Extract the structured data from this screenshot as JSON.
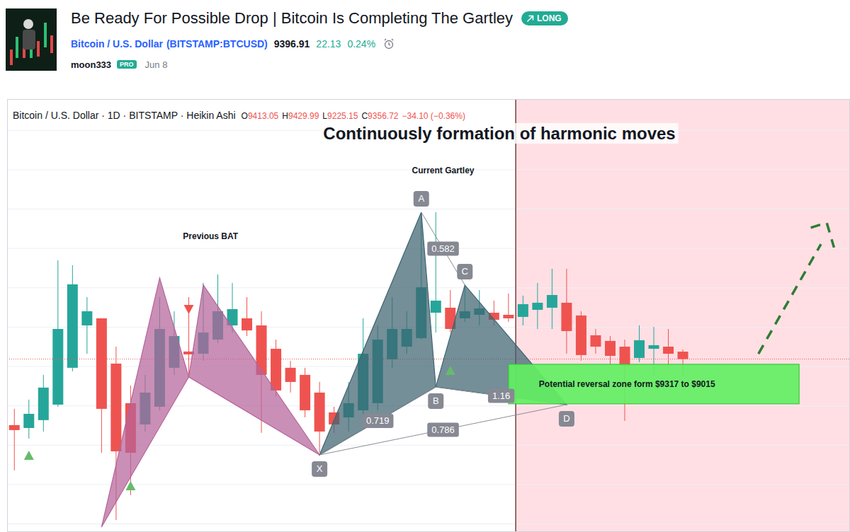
{
  "header": {
    "title": "Be Ready For Possible Drop | Bitcoin Is Completing The Gartley",
    "badge": "LONG",
    "symbol": "Bitcoin / U.S. Dollar",
    "exchange": "(BITSTAMP:BTCUSD)",
    "price": "9396.91",
    "change": "22.13",
    "change_percent": "0.24%",
    "author": "moon333",
    "author_badge": "PRO",
    "date": "Jun 8"
  },
  "chart_data": {
    "type": "candlestick",
    "title": "Continuously formation of harmonic moves",
    "legend_text": "Bitcoin / U.S. Dollar · 1D · BITSTAMP · Heikin Ashi",
    "ohlc": [
      {
        "label": "O",
        "value": "9413.05"
      },
      {
        "label": "H",
        "value": "9429.99"
      },
      {
        "label": "L",
        "value": "9225.15"
      },
      {
        "label": "C",
        "value": "9356.72"
      }
    ],
    "change": "−34.10 (−0.36%)",
    "categories": [
      null,
      null,
      null,
      null,
      null,
      null,
      null,
      null,
      null,
      null,
      null,
      null,
      null,
      null,
      null,
      null,
      null,
      null,
      null,
      null,
      null,
      null,
      null,
      null,
      null,
      null,
      null,
      null,
      null,
      null,
      null,
      null,
      null,
      null,
      null,
      null,
      null,
      null,
      null,
      null,
      null,
      null,
      null,
      null,
      null,
      null,
      null,
      null,
      null,
      null,
      null,
      null,
      null,
      null,
      null,
      null,
      null,
      null
    ],
    "open": [
      8853,
      8831,
      8891,
      9009,
      9290,
      9613,
      9667,
      9322,
      9020,
      8858,
      8993,
      9290,
      9414,
      9397,
      9505,
      9613,
      9667,
      9613,
      9435,
      9290,
      9236,
      9101,
      8950,
      8912,
      8966,
      9020,
      9354,
      9451,
      9516,
      9710,
      9748,
      9667,
      9694,
      9710,
      9694,
      9678,
      9732,
      9748,
      9786,
      9689,
      9538,
      9495,
      9451,
      9365,
      9435,
      9451,
      9413.05,
      null,
      null,
      null,
      null,
      null,
      null,
      null,
      null,
      null,
      null,
      null
    ],
    "high": [
      8977,
      9047,
      9236,
      10109,
      10072,
      9829,
      9667,
      9451,
      9155,
      9236,
      9829,
      9721,
      9829,
      9937,
      10002,
      9937,
      9829,
      9721,
      9505,
      9344,
      9290,
      9182,
      8993,
      9182,
      9667,
      9613,
      9829,
      9721,
      10476,
      10476,
      9883,
      9910,
      9883,
      9802,
      9856,
      9840,
      9937,
      10045,
      10045,
      9721,
      9586,
      9532,
      9505,
      9613,
      9602,
      9586,
      9429.99,
      null,
      null,
      null,
      null,
      null,
      null,
      null,
      null,
      null,
      null,
      null
    ],
    "low": [
      8508,
      8750,
      8804,
      8993,
      9263,
      9397,
      8642,
      8130,
      8319,
      8804,
      8966,
      9236,
      9236,
      9344,
      9478,
      9559,
      9532,
      8794,
      9074,
      9101,
      8912,
      8642,
      8794,
      8804,
      8912,
      8966,
      9290,
      9397,
      9505,
      9559,
      9559,
      9640,
      9613,
      9613,
      9640,
      9613,
      9586,
      9586,
      9397,
      9344,
      9397,
      9317,
      8885,
      9333,
      9236,
      9290,
      9225.15,
      null,
      null,
      null,
      null,
      null,
      null,
      null,
      null,
      null,
      null,
      null
    ],
    "close": [
      8815,
      8939,
      9139,
      9586,
      9926,
      9721,
      8977,
      8653,
      8642,
      9101,
      9586,
      9532,
      9392,
      9559,
      9721,
      9737,
      9575,
      9236,
      9117,
      9182,
      8966,
      8804,
      8858,
      9020,
      9397,
      9505,
      9586,
      9586,
      9904,
      9802,
      9586,
      9721,
      9743,
      9656,
      9667,
      9775,
      9786,
      9845,
      9570,
      9387,
      9451,
      9381,
      9306,
      9500,
      9462,
      9397,
      9356.72,
      null,
      null,
      null,
      null,
      null,
      null,
      null,
      null,
      null,
      null,
      null
    ],
    "ylim": [
      8038,
      11339
    ],
    "yticks": [
      8100,
      8400,
      8700,
      9000,
      9300,
      9600,
      9900,
      10200,
      10500,
      10800,
      11100
    ],
    "grid": true,
    "tick_labels": false,
    "annotations": {
      "highlight_start": 35,
      "patterns": [
        {
          "name": "Previous BAT",
          "color": "#b5649a",
          "points": {
            "x": [
              6,
              10,
              12,
              13,
              21
            ],
            "y": [
              8076,
              9975,
              9220,
              9921,
              8626
            ]
          }
        },
        {
          "name": "Current Gartley",
          "color": "#3e6470",
          "points": {
            "x": [
              21,
              28,
              29,
              31,
              38
            ],
            "y": [
              8626,
              10476,
              9144,
              9921,
              9009
            ],
            "labels": [
              "X",
              "A",
              "B",
              "C",
              "D"
            ]
          },
          "ratios": [
            {
              "from": "A",
              "to": "C",
              "value": 0.582
            },
            {
              "from": "X",
              "to": "B",
              "value": 0.719
            },
            {
              "from": "X",
              "to": "D",
              "value": 0.786
            },
            {
              "from": "B",
              "to": "D",
              "value": 1.16
            }
          ]
        }
      ],
      "zone": {
        "label": "Potential reversal zone form $9317 to $9015",
        "high": 9317,
        "low": 9015,
        "start": 34,
        "end": 54
      },
      "signals": [
        {
          "x": 1,
          "y": 8621,
          "marker": "triangle-up"
        },
        {
          "x": 8,
          "y": 8389,
          "marker": "triangle-up"
        },
        {
          "x": 12,
          "y": 9737,
          "marker": "triangle-down"
        },
        {
          "x": 30,
          "y": 9268,
          "marker": "triangle-up"
        }
      ],
      "projection": {
        "x": [
          51.2,
          55.5,
          null,
          54.8,
          55.9,
          56.4
        ],
        "y": [
          9397,
          10233,
          null,
          10358,
          10396,
          10207
        ]
      }
    }
  }
}
